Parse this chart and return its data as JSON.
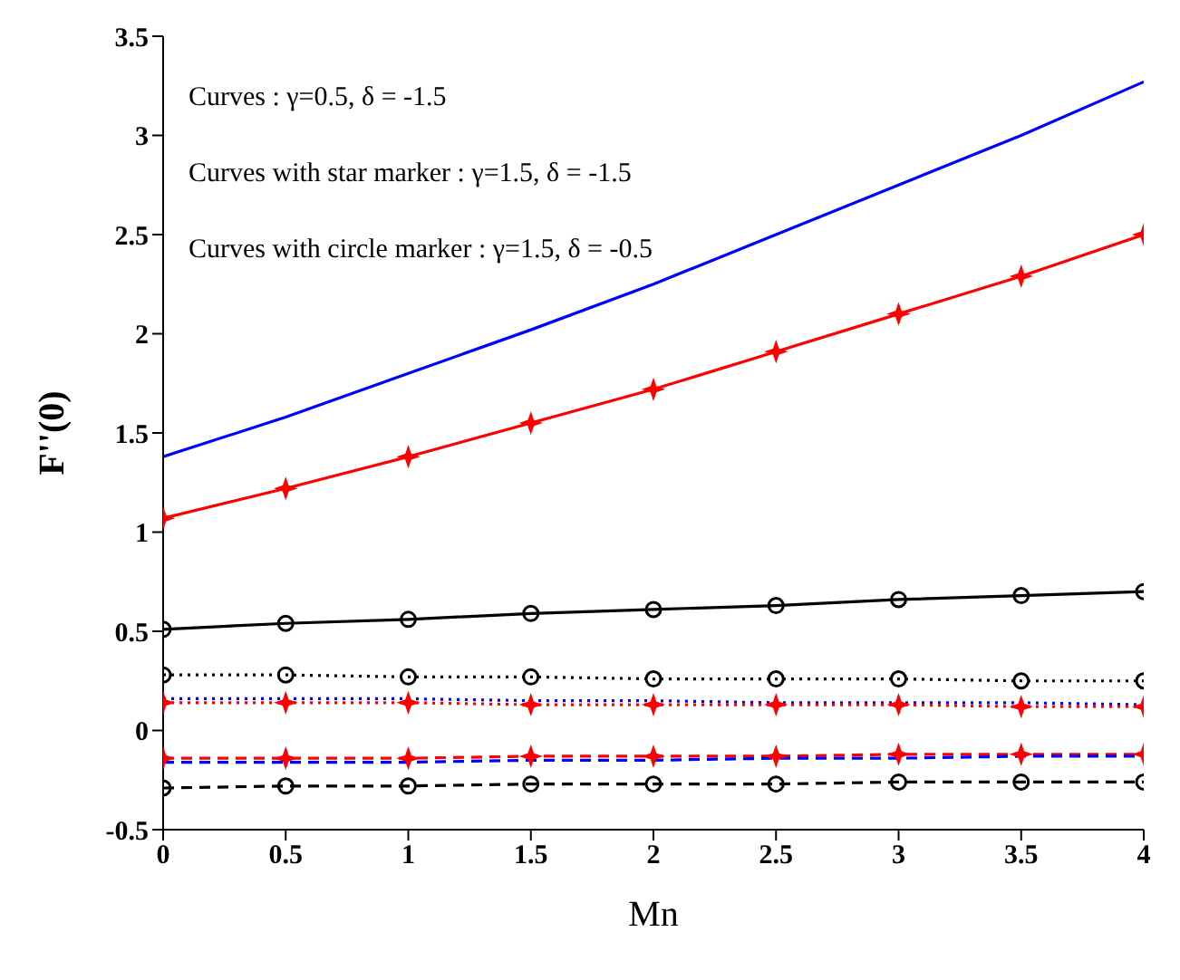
{
  "chart_data": {
    "type": "line",
    "xlabel": "Mn",
    "ylabel": "F''(0)",
    "annotations": [
      "Curves : γ=0.5, δ = -1.5",
      "Curves with star marker : γ=1.5, δ = -1.5",
      "Curves with circle marker : γ=1.5, δ = -0.5"
    ],
    "x": [
      0,
      0.5,
      1,
      1.5,
      2,
      2.5,
      3,
      3.5,
      4
    ],
    "series": [
      {
        "color": "#0000ff",
        "marker": "none",
        "line_style": "solid",
        "values": [
          1.38,
          1.58,
          1.8,
          2.02,
          2.25,
          2.5,
          2.75,
          3.0,
          3.27
        ]
      },
      {
        "color": "#ff0000",
        "marker": "star",
        "line_style": "solid",
        "values": [
          1.07,
          1.22,
          1.38,
          1.55,
          1.72,
          1.91,
          2.1,
          2.29,
          2.5
        ]
      },
      {
        "color": "#000000",
        "marker": "circle",
        "line_style": "solid",
        "values": [
          0.51,
          0.54,
          0.56,
          0.59,
          0.61,
          0.63,
          0.66,
          0.68,
          0.7
        ]
      },
      {
        "color": "#000000",
        "marker": "circle",
        "line_style": "dotted",
        "values": [
          0.28,
          0.28,
          0.27,
          0.27,
          0.26,
          0.26,
          0.26,
          0.25,
          0.25
        ]
      },
      {
        "color": "#0000ff",
        "marker": "none",
        "line_style": "dotted",
        "values": [
          0.16,
          0.16,
          0.16,
          0.15,
          0.15,
          0.14,
          0.14,
          0.14,
          0.13
        ]
      },
      {
        "color": "#ff0000",
        "marker": "star",
        "line_style": "dotted",
        "values": [
          0.14,
          0.14,
          0.14,
          0.13,
          0.13,
          0.13,
          0.13,
          0.12,
          0.12
        ]
      },
      {
        "color": "#ff0000",
        "marker": "star",
        "line_style": "dashed",
        "values": [
          -0.14,
          -0.14,
          -0.14,
          -0.13,
          -0.13,
          -0.13,
          -0.12,
          -0.12,
          -0.12
        ]
      },
      {
        "color": "#0000ff",
        "marker": "none",
        "line_style": "dashed",
        "values": [
          -0.16,
          -0.16,
          -0.16,
          -0.15,
          -0.15,
          -0.14,
          -0.14,
          -0.13,
          -0.13
        ]
      },
      {
        "color": "#000000",
        "marker": "circle",
        "line_style": "dashed",
        "values": [
          -0.29,
          -0.28,
          -0.28,
          -0.27,
          -0.27,
          -0.27,
          -0.26,
          -0.26,
          -0.26
        ]
      }
    ],
    "xlim": [
      0,
      4
    ],
    "xticks": [
      0,
      0.5,
      1,
      1.5,
      2,
      2.5,
      3,
      3.5,
      4
    ],
    "ylim": [
      -0.5,
      3.5
    ],
    "yticks": [
      -0.5,
      0,
      0.5,
      1,
      1.5,
      2,
      2.5,
      3,
      3.5
    ],
    "grid": false,
    "legend": false
  }
}
